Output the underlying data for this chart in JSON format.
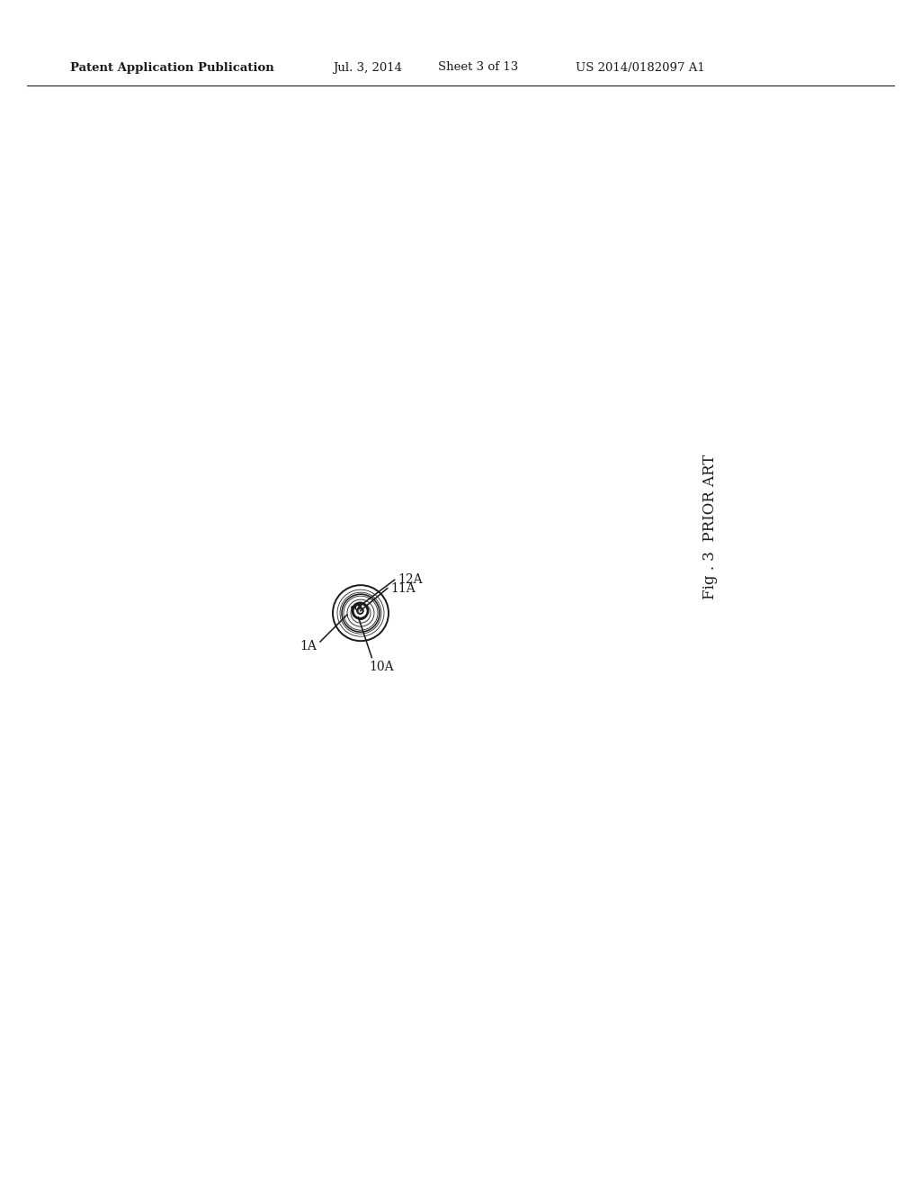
{
  "bg_color": "#ffffff",
  "line_color": "#1a1a1a",
  "header_text": "Patent Application Publication",
  "header_date": "Jul. 3, 2014",
  "header_sheet": "Sheet 3 of 13",
  "header_patent": "US 2014/0182097 A1",
  "fig_label": "Fig . 3  PRIOR ART",
  "lw": 1.4,
  "lw_thin": 0.7
}
